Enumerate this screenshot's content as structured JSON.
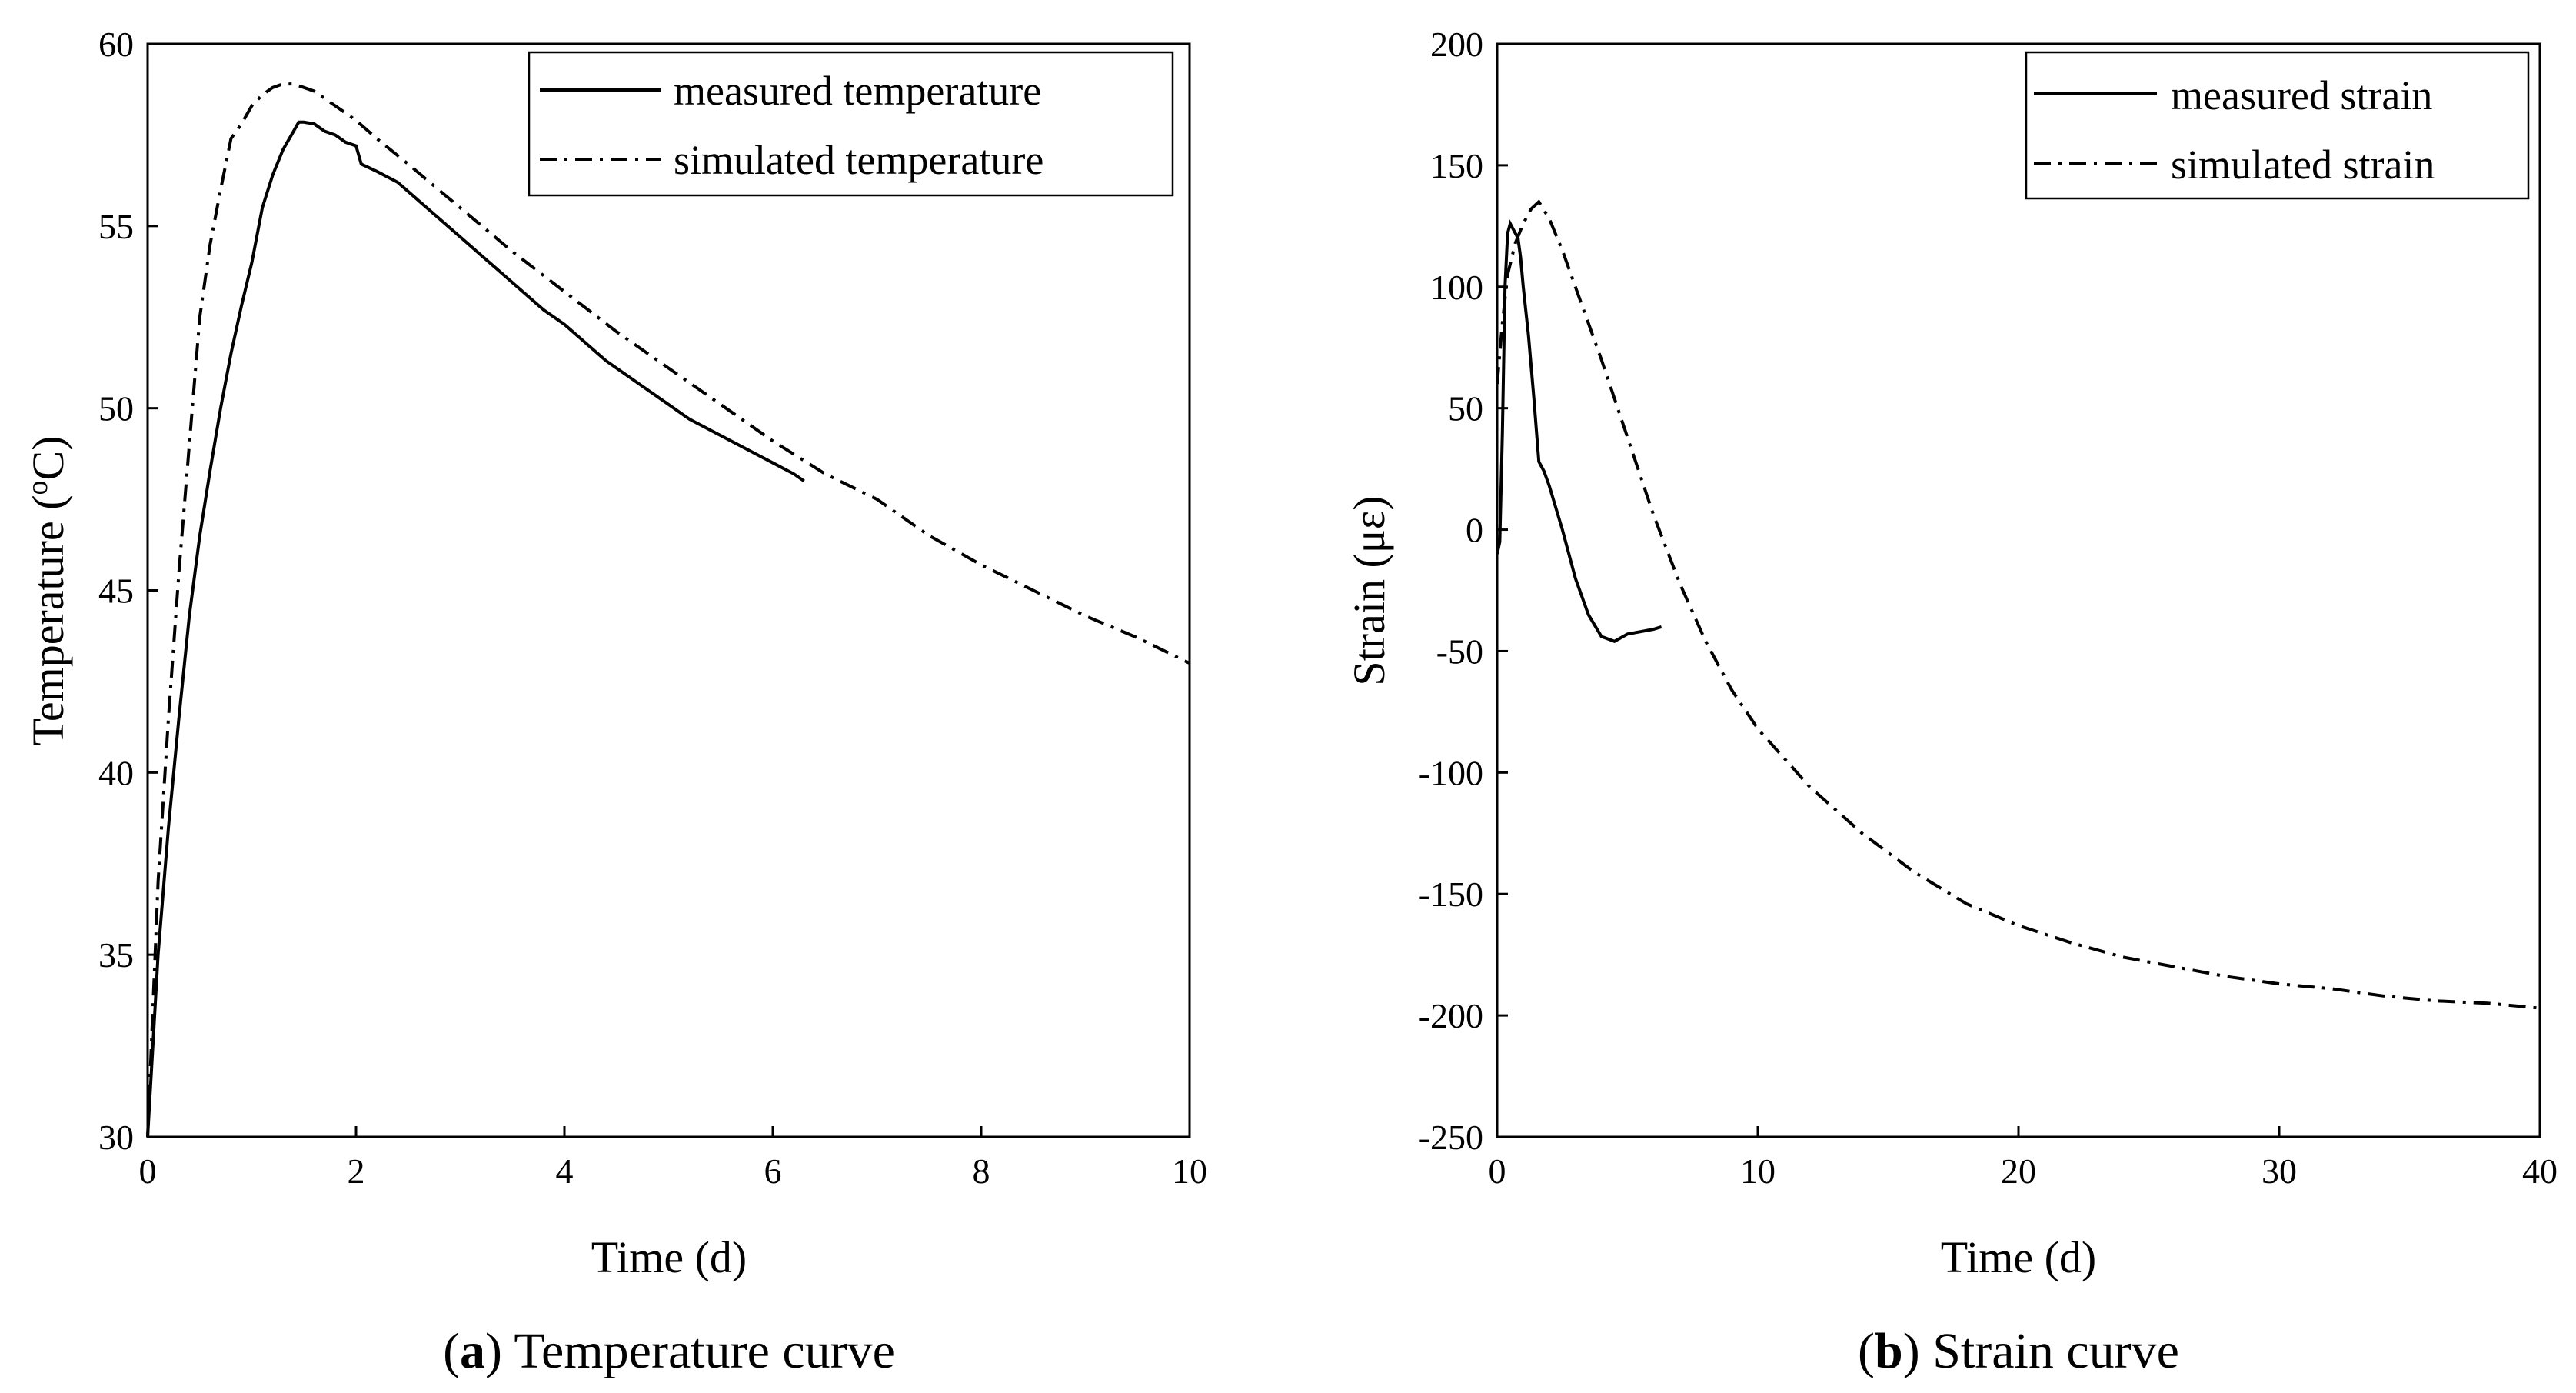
{
  "chart_data": [
    {
      "type": "line",
      "title": "",
      "xlabel": "Time (d)",
      "ylabel": "Temperature (°C)",
      "ylabel_parts": {
        "prefix": "Temperature (",
        "sup": "o",
        "suffix": "C)"
      },
      "xlim": [
        0,
        10
      ],
      "ylim": [
        30,
        60
      ],
      "xticks": [
        0,
        2,
        4,
        6,
        8,
        10
      ],
      "yticks": [
        30,
        35,
        40,
        45,
        50,
        55,
        60
      ],
      "grid": false,
      "legend_position": "top-right",
      "caption": {
        "letter": "a",
        "text": "Temperature curve"
      },
      "series": [
        {
          "name": "measured temperature",
          "style": "solid",
          "x": [
            0,
            0.05,
            0.1,
            0.2,
            0.3,
            0.4,
            0.5,
            0.6,
            0.7,
            0.8,
            0.9,
            1.0,
            1.1,
            1.2,
            1.3,
            1.4,
            1.45,
            1.5,
            1.6,
            1.7,
            1.8,
            1.9,
            2.0,
            2.05,
            2.2,
            2.4,
            2.6,
            2.8,
            3.0,
            3.2,
            3.4,
            3.6,
            3.8,
            4.0,
            4.2,
            4.4,
            4.6,
            4.8,
            5.0,
            5.2,
            5.4,
            5.6,
            5.8,
            6.0,
            6.2,
            6.3
          ],
          "values": [
            30,
            32.5,
            35,
            38.5,
            41.5,
            44.3,
            46.5,
            48.3,
            50.0,
            51.5,
            52.8,
            54.0,
            55.5,
            56.4,
            57.1,
            57.6,
            57.85,
            57.85,
            57.8,
            57.6,
            57.5,
            57.3,
            57.2,
            56.7,
            56.5,
            56.2,
            55.7,
            55.2,
            54.7,
            54.2,
            53.7,
            53.2,
            52.7,
            52.3,
            51.8,
            51.3,
            50.9,
            50.5,
            50.1,
            49.7,
            49.4,
            49.1,
            48.8,
            48.5,
            48.2,
            48.0
          ]
        },
        {
          "name": "simulated temperature",
          "style": "dash-dot",
          "x": [
            0,
            0.05,
            0.1,
            0.2,
            0.3,
            0.4,
            0.5,
            0.6,
            0.7,
            0.8,
            0.9,
            1.0,
            1.1,
            1.2,
            1.3,
            1.4,
            1.5,
            1.6,
            1.8,
            2.0,
            2.2,
            2.5,
            3.0,
            3.5,
            4.0,
            4.5,
            5.0,
            5.5,
            6.0,
            6.5,
            7.0,
            7.5,
            8.0,
            8.5,
            9.0,
            9.5,
            10.0
          ],
          "values": [
            30,
            33.5,
            37,
            41.5,
            45.5,
            49.0,
            52.5,
            54.5,
            56.0,
            57.4,
            57.8,
            58.3,
            58.6,
            58.8,
            58.9,
            58.9,
            58.8,
            58.7,
            58.3,
            57.9,
            57.4,
            56.7,
            55.5,
            54.3,
            53.2,
            52.1,
            51.1,
            50.1,
            49.1,
            48.2,
            47.5,
            46.5,
            45.7,
            45.0,
            44.3,
            43.7,
            43.0
          ]
        }
      ]
    },
    {
      "type": "line",
      "title": "",
      "xlabel": "Time (d)",
      "ylabel": "Strain (με)",
      "xlim": [
        0,
        40
      ],
      "ylim": [
        -250,
        200
      ],
      "xticks": [
        0,
        10,
        20,
        30,
        40
      ],
      "yticks": [
        -250,
        -200,
        -150,
        -100,
        -50,
        0,
        50,
        100,
        150,
        200
      ],
      "grid": false,
      "legend_position": "top-right",
      "caption": {
        "letter": "b",
        "text": "Strain curve"
      },
      "series": [
        {
          "name": "measured strain",
          "style": "solid",
          "x": [
            0,
            0.1,
            0.2,
            0.3,
            0.4,
            0.5,
            0.6,
            0.7,
            0.8,
            0.9,
            1.0,
            1.2,
            1.4,
            1.6,
            1.8,
            2.0,
            2.5,
            3.0,
            3.5,
            4.0,
            4.5,
            5.0,
            5.5,
            6.0,
            6.3
          ],
          "values": [
            -10,
            -5,
            40,
            100,
            122,
            126,
            124,
            122,
            120,
            112,
            100,
            80,
            55,
            28,
            24,
            18,
            0,
            -20,
            -35,
            -44,
            -46,
            -43,
            -42,
            -41,
            -40
          ]
        },
        {
          "name": "simulated strain",
          "style": "dash-dot",
          "x": [
            0,
            0.2,
            0.4,
            0.7,
            1.0,
            1.3,
            1.6,
            2.0,
            2.5,
            3.0,
            4.0,
            5.0,
            6.0,
            7.0,
            8.0,
            9.0,
            10.0,
            12.0,
            14.0,
            16.0,
            18.0,
            20.0,
            22.0,
            24.0,
            26.0,
            28.0,
            30.0,
            32.0,
            34.0,
            36.0,
            38.0,
            40.0
          ],
          "values": [
            60,
            85,
            105,
            118,
            126,
            132,
            135,
            128,
            115,
            100,
            70,
            38,
            6,
            -22,
            -46,
            -66,
            -82,
            -106,
            -125,
            -141,
            -154,
            -163,
            -170,
            -176,
            -180,
            -184,
            -187,
            -189,
            -192,
            -194,
            -195,
            -197
          ]
        }
      ]
    }
  ]
}
